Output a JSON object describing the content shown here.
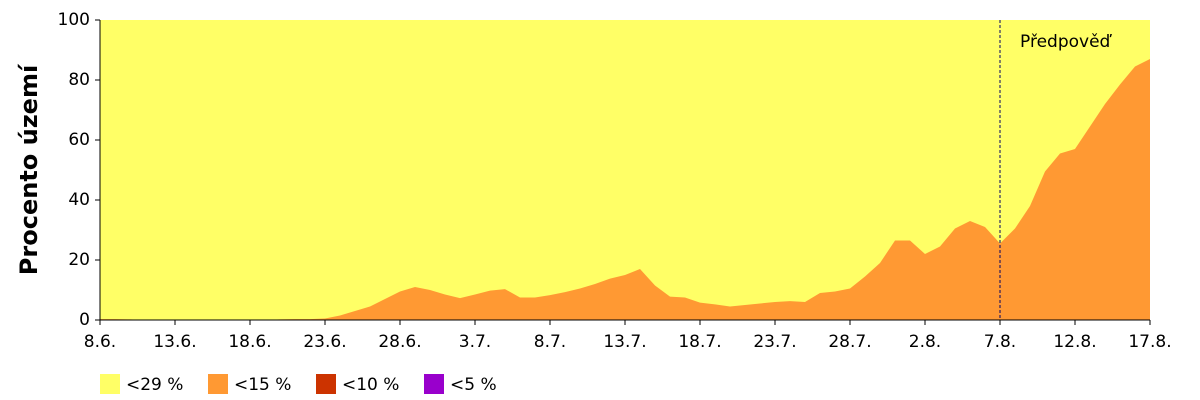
{
  "chart_data": {
    "type": "area",
    "stacked": false,
    "y_label": "Procento území",
    "categories": [
      "8.6.",
      null,
      null,
      null,
      null,
      "13.6.",
      null,
      null,
      null,
      null,
      "18.6.",
      null,
      null,
      null,
      null,
      "23.6.",
      null,
      null,
      null,
      null,
      "28.6.",
      null,
      null,
      null,
      null,
      "3.7.",
      null,
      null,
      null,
      null,
      "8.7.",
      null,
      null,
      null,
      null,
      "13.7.",
      null,
      null,
      null,
      null,
      "18.7.",
      null,
      null,
      null,
      null,
      "23.7.",
      null,
      null,
      null,
      null,
      "28.7.",
      null,
      null,
      null,
      null,
      "2.8.",
      null,
      null,
      null,
      null,
      "7.8.",
      null,
      null,
      null,
      null,
      "12.8.",
      null,
      null,
      null,
      null,
      "17.8."
    ],
    "series": [
      {
        "name": "<29 %",
        "color": "#ffff66",
        "values": [
          100,
          100,
          100,
          100,
          100,
          100,
          100,
          100,
          100,
          100,
          100,
          100,
          100,
          100,
          100,
          100,
          100,
          100,
          100,
          100,
          100,
          100,
          100,
          100,
          100,
          100,
          100,
          100,
          100,
          100,
          100,
          100,
          100,
          100,
          100,
          100,
          100,
          100,
          100,
          100,
          100,
          100,
          100,
          100,
          100,
          100,
          100,
          100,
          100,
          100,
          100,
          100,
          100,
          100,
          100,
          100,
          100,
          100,
          100,
          100,
          100,
          100,
          100,
          100,
          100,
          100,
          100,
          100,
          100,
          100,
          100
        ]
      },
      {
        "name": "<15 %",
        "color": "#ff9933",
        "values": [
          0.3,
          0.3,
          0.2,
          0,
          0,
          0,
          0,
          0,
          0,
          0,
          0,
          0,
          0.2,
          0.3,
          0.3,
          0.5,
          1.5,
          3,
          4.5,
          7,
          9.5,
          11,
          10,
          8.5,
          7.3,
          8.5,
          9.8,
          10.3,
          7.5,
          7.5,
          8.3,
          9.3,
          10.5,
          12,
          13.8,
          15,
          17,
          11.5,
          7.8,
          7.5,
          5.8,
          5.2,
          4.5,
          5,
          5.5,
          6,
          6.3,
          6,
          9,
          9.5,
          10.5,
          14.5,
          19,
          26.5,
          26.5,
          22,
          24.5,
          30.5,
          33,
          31,
          25.5,
          30.5,
          38,
          49.5,
          55.5,
          57,
          64.5,
          72,
          78.5,
          84.5,
          87
        ]
      },
      {
        "name": "<10 %",
        "color": "#cc3300",
        "values": [
          0,
          0,
          0,
          0,
          0,
          0,
          0,
          0,
          0,
          0,
          0,
          0,
          0,
          0,
          0,
          0,
          0,
          0,
          0,
          0,
          0,
          0,
          0,
          0,
          0,
          0,
          0,
          0,
          0,
          0,
          0,
          0,
          0,
          0,
          0,
          0,
          0,
          0,
          0,
          0,
          0,
          0,
          0,
          0,
          0,
          0,
          0,
          0,
          0,
          0,
          0,
          0,
          0,
          0,
          0,
          0,
          0,
          0,
          0,
          0,
          0,
          0,
          0,
          0,
          0,
          0,
          0,
          0,
          0,
          0,
          0
        ]
      },
      {
        "name": "<5 %",
        "color": "#9900cc",
        "values": [
          0,
          0,
          0,
          0,
          0,
          0,
          0,
          0,
          0,
          0,
          0,
          0,
          0,
          0,
          0,
          0,
          0,
          0,
          0,
          0,
          0,
          0,
          0,
          0,
          0,
          0,
          0,
          0,
          0,
          0,
          0,
          0,
          0,
          0,
          0,
          0,
          0,
          0,
          0,
          0,
          0,
          0,
          0,
          0,
          0,
          0,
          0,
          0,
          0,
          0,
          0,
          0,
          0,
          0,
          0,
          0,
          0,
          0,
          0,
          0,
          0,
          0,
          0,
          0,
          0,
          0,
          0,
          0,
          0,
          0,
          0
        ]
      }
    ],
    "ylim": [
      0,
      100
    ],
    "yticks": [
      0,
      20,
      40,
      60,
      80,
      100
    ],
    "grid": false,
    "annotation": {
      "text": "Předpověď",
      "x": "7.8."
    }
  }
}
